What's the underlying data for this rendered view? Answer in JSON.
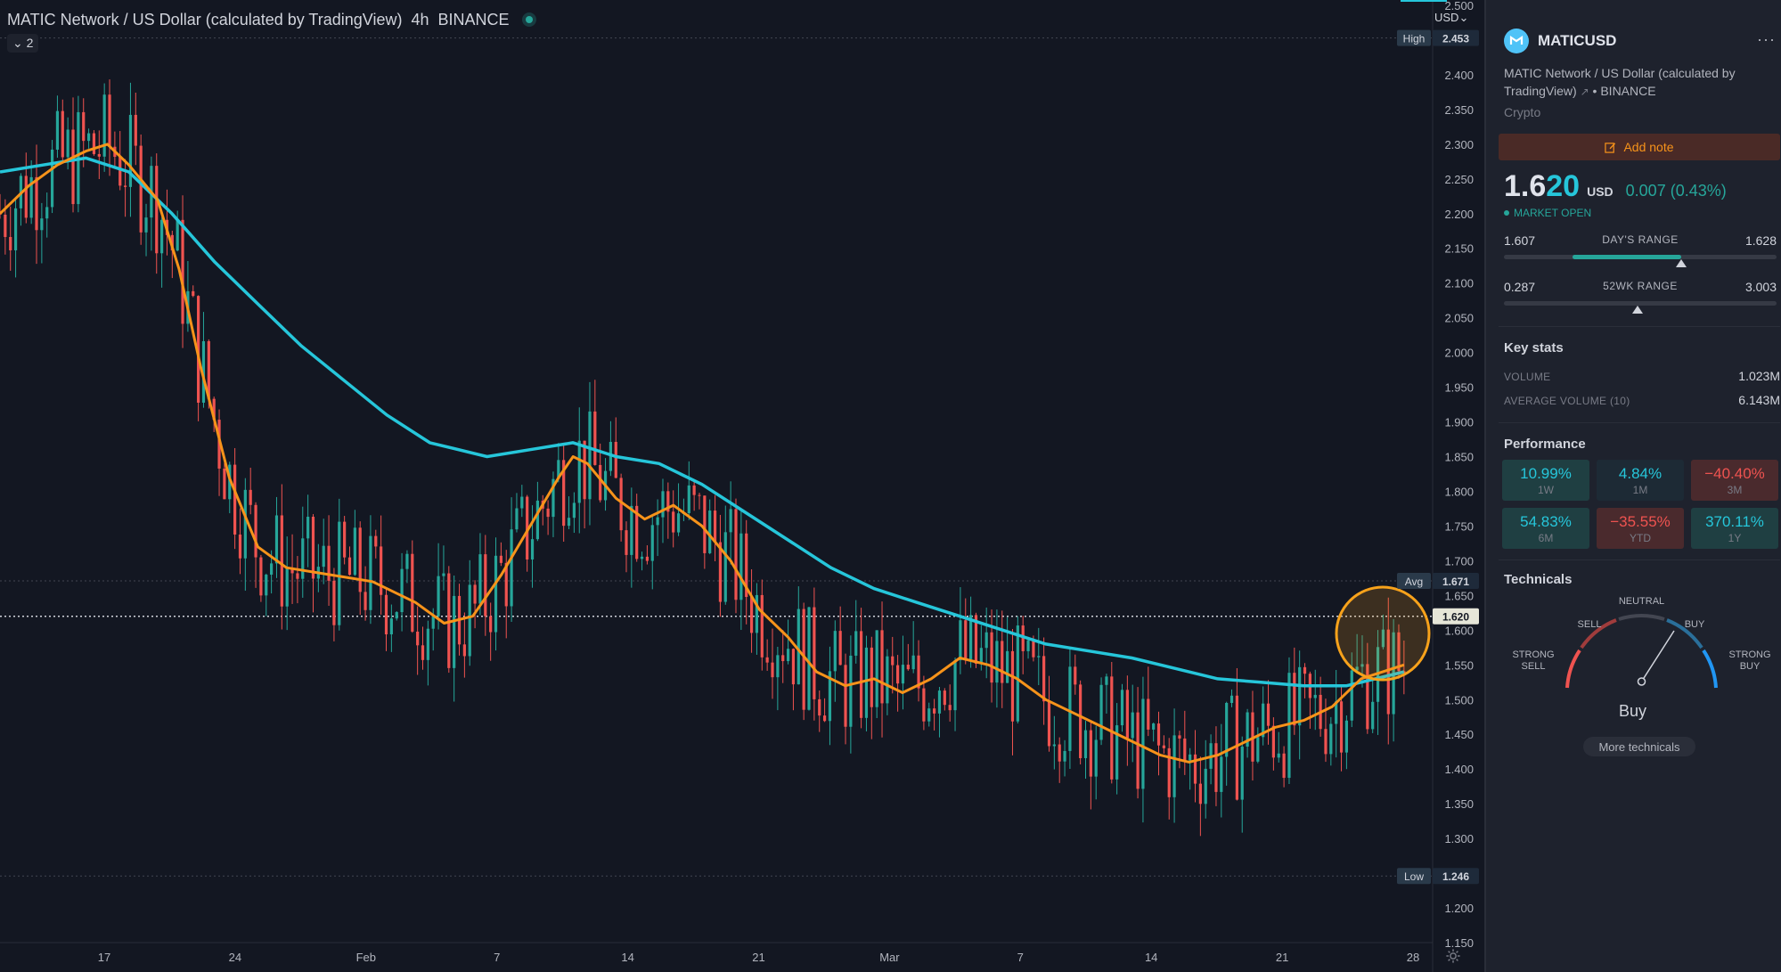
{
  "chart": {
    "title": "MATIC Network / US Dollar (calculated by TradingView)",
    "interval": "4h",
    "exchange": "BINANCE",
    "study_toggle": "2",
    "currency_button": "USD",
    "price_axis": {
      "min": 1.15,
      "max": 2.5,
      "step": 0.05,
      "ticks": [
        "2.500",
        "2.450",
        "2.400",
        "2.350",
        "2.300",
        "2.250",
        "2.200",
        "2.150",
        "2.100",
        "2.050",
        "2.000",
        "1.950",
        "1.900",
        "1.850",
        "1.800",
        "1.750",
        "1.700",
        "1.650",
        "1.600",
        "1.550",
        "1.500",
        "1.450",
        "1.400",
        "1.350",
        "1.300",
        "1.250",
        "1.200",
        "1.150"
      ]
    },
    "time_axis": [
      "17",
      "24",
      "Feb",
      "7",
      "14",
      "21",
      "Mar",
      "7",
      "14",
      "21",
      "28"
    ],
    "markers": {
      "high_label": "High",
      "high_value": "2.453",
      "avg_label": "Avg",
      "avg_value": "1.671",
      "last_value": "1.620",
      "low_label": "Low",
      "low_value": "1.246"
    },
    "colors": {
      "up": "#26a69a",
      "down": "#ef5350",
      "ma_fast": "#f7931a",
      "ma_slow": "#26c6da",
      "highlight_circle": "#f7a21b"
    },
    "ma_slow_path": [
      [
        0,
        2.26
      ],
      [
        0.03,
        2.27
      ],
      [
        0.06,
        2.28
      ],
      [
        0.09,
        2.26
      ],
      [
        0.12,
        2.2
      ],
      [
        0.15,
        2.13
      ],
      [
        0.18,
        2.07
      ],
      [
        0.21,
        2.01
      ],
      [
        0.24,
        1.96
      ],
      [
        0.27,
        1.91
      ],
      [
        0.3,
        1.87
      ],
      [
        0.34,
        1.85
      ],
      [
        0.37,
        1.86
      ],
      [
        0.4,
        1.87
      ],
      [
        0.43,
        1.85
      ],
      [
        0.46,
        1.84
      ],
      [
        0.49,
        1.81
      ],
      [
        0.52,
        1.77
      ],
      [
        0.55,
        1.73
      ],
      [
        0.58,
        1.69
      ],
      [
        0.61,
        1.66
      ],
      [
        0.64,
        1.64
      ],
      [
        0.67,
        1.62
      ],
      [
        0.7,
        1.6
      ],
      [
        0.73,
        1.58
      ],
      [
        0.76,
        1.57
      ],
      [
        0.79,
        1.56
      ],
      [
        0.82,
        1.545
      ],
      [
        0.85,
        1.53
      ],
      [
        0.88,
        1.525
      ],
      [
        0.91,
        1.52
      ],
      [
        0.94,
        1.52
      ],
      [
        0.97,
        1.535
      ],
      [
        0.98,
        1.54
      ]
    ],
    "ma_fast_path": [
      [
        0,
        2.2
      ],
      [
        0.02,
        2.24
      ],
      [
        0.04,
        2.27
      ],
      [
        0.06,
        2.29
      ],
      [
        0.075,
        2.3
      ],
      [
        0.09,
        2.27
      ],
      [
        0.11,
        2.22
      ],
      [
        0.125,
        2.12
      ],
      [
        0.14,
        1.98
      ],
      [
        0.16,
        1.82
      ],
      [
        0.18,
        1.72
      ],
      [
        0.2,
        1.69
      ],
      [
        0.23,
        1.68
      ],
      [
        0.26,
        1.67
      ],
      [
        0.29,
        1.64
      ],
      [
        0.31,
        1.61
      ],
      [
        0.33,
        1.62
      ],
      [
        0.35,
        1.68
      ],
      [
        0.37,
        1.75
      ],
      [
        0.39,
        1.82
      ],
      [
        0.4,
        1.85
      ],
      [
        0.41,
        1.84
      ],
      [
        0.43,
        1.79
      ],
      [
        0.45,
        1.76
      ],
      [
        0.47,
        1.78
      ],
      [
        0.49,
        1.75
      ],
      [
        0.51,
        1.7
      ],
      [
        0.53,
        1.63
      ],
      [
        0.55,
        1.59
      ],
      [
        0.57,
        1.54
      ],
      [
        0.59,
        1.52
      ],
      [
        0.61,
        1.53
      ],
      [
        0.63,
        1.51
      ],
      [
        0.65,
        1.53
      ],
      [
        0.67,
        1.56
      ],
      [
        0.69,
        1.55
      ],
      [
        0.71,
        1.53
      ],
      [
        0.73,
        1.5
      ],
      [
        0.75,
        1.48
      ],
      [
        0.77,
        1.46
      ],
      [
        0.79,
        1.44
      ],
      [
        0.81,
        1.42
      ],
      [
        0.83,
        1.41
      ],
      [
        0.85,
        1.42
      ],
      [
        0.87,
        1.44
      ],
      [
        0.89,
        1.46
      ],
      [
        0.91,
        1.47
      ],
      [
        0.93,
        1.49
      ],
      [
        0.95,
        1.53
      ],
      [
        0.98,
        1.55
      ]
    ]
  },
  "sidebar": {
    "symbol": "MATICUSD",
    "more": "···",
    "description": "MATIC Network / US Dollar (calculated by TradingView)",
    "exchange_suffix": "• BINANCE",
    "category": "Crypto",
    "add_note": "Add note",
    "price_main": "1.6",
    "price_last": "20",
    "currency": "USD",
    "change": "0.007 (0.43%)",
    "market_status": "MARKET OPEN",
    "day_range": {
      "low": "1.607",
      "label": "DAY'S RANGE",
      "high": "1.628",
      "fill_start": 0.25,
      "fill_end": 0.65,
      "marker": 0.65
    },
    "week52_range": {
      "low": "0.287",
      "label": "52WK RANGE",
      "high": "3.003",
      "marker": 0.49
    },
    "key_stats_title": "Key stats",
    "volume_label": "VOLUME",
    "volume_value": "1.023M",
    "avg_volume_label": "AVERAGE VOLUME (10)",
    "avg_volume_value": "6.143M",
    "performance_title": "Performance",
    "performance": [
      {
        "value": "10.99%",
        "period": "1W",
        "tone": "pos"
      },
      {
        "value": "4.84%",
        "period": "1M",
        "tone": "pos-dim"
      },
      {
        "value": "−40.40%",
        "period": "3M",
        "tone": "neg"
      },
      {
        "value": "54.83%",
        "period": "6M",
        "tone": "pos"
      },
      {
        "value": "−35.55%",
        "period": "YTD",
        "tone": "neg"
      },
      {
        "value": "370.11%",
        "period": "1Y",
        "tone": "pos"
      }
    ],
    "technicals_title": "Technicals",
    "gauge": {
      "neutral": "NEUTRAL",
      "sell": "SELL",
      "buy": "BUY",
      "strong_sell_1": "STRONG",
      "strong_sell_2": "SELL",
      "strong_buy_1": "STRONG",
      "strong_buy_2": "BUY"
    },
    "verdict": "Buy",
    "more_technicals": "More technicals"
  }
}
